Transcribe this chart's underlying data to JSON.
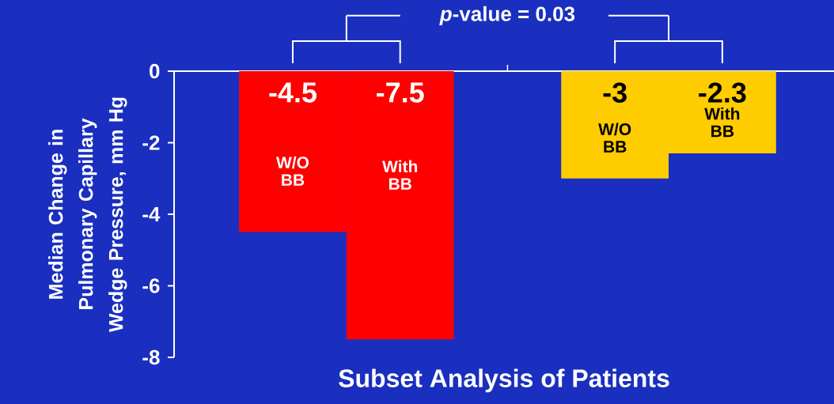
{
  "chart_data": {
    "type": "bar",
    "xlabel": "Subset Analysis of Patients",
    "ylabel": "Median Change in Pulmonary Capillary Wedge Pressure, mm Hg",
    "categories": [
      "W/O BB",
      "With BB",
      null,
      "W/O BB",
      "With BB"
    ],
    "values": [
      -4.5,
      -7.5,
      null,
      -3,
      -2.3
    ],
    "colors": [
      "#ff0000",
      "#ff0000",
      "#ffcc00",
      "#ffcc00",
      "#ffcc00"
    ],
    "data_labels": true,
    "ylim": [
      -8,
      0
    ],
    "yticks": [
      0,
      -2,
      -4,
      -6,
      -8
    ],
    "annotations": [
      "*p*-value = 0.03"
    ]
  }
}
